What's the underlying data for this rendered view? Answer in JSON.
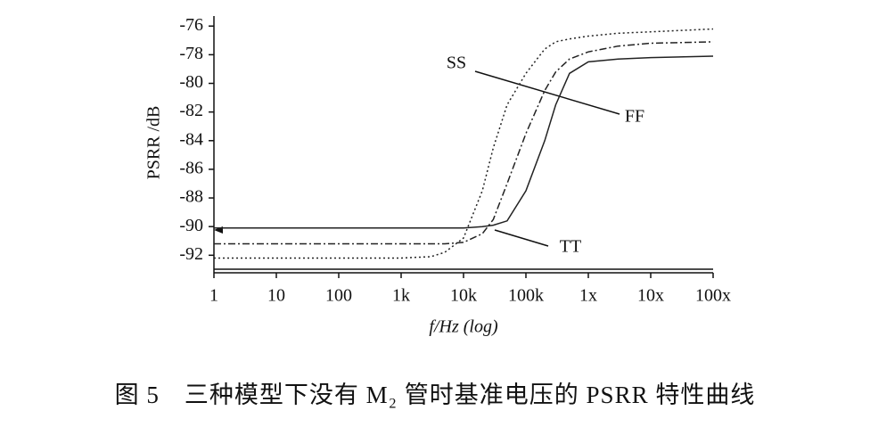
{
  "chart_data": {
    "type": "line",
    "ylabel": "PSRR /dB",
    "xlabel": "f/Hz (log)",
    "caption": "图 5　三种模型下没有 M₂ 管时基准电压的 PSRR 特性曲线",
    "xscale": "log",
    "xlim": [
      1,
      100000000
    ],
    "xticks": [
      1,
      10,
      100,
      {
        "value": 1000,
        "label": "1k"
      },
      {
        "value": 10000,
        "label": "10k"
      },
      {
        "value": 100000,
        "label": "100k"
      },
      {
        "value": 1000000,
        "label": "1x"
      },
      {
        "value": 10000000,
        "label": "10x"
      },
      {
        "value": 100000000,
        "label": "100x"
      }
    ],
    "ylim": [
      -93.1,
      -75.3
    ],
    "yticks": [
      -76,
      -78,
      -80,
      -82,
      -84,
      -86,
      -88,
      -90,
      -92
    ],
    "x": [
      1,
      10,
      100,
      1000,
      3000,
      5000,
      10000,
      20000,
      30000,
      50000,
      100000,
      200000,
      300000,
      500000,
      1000000,
      3000000,
      10000000,
      100000000
    ],
    "series": [
      {
        "name": "SS",
        "color": "#222222",
        "dash": "dotted",
        "values": [
          -92.2,
          -92.2,
          -92.2,
          -92.2,
          -92.1,
          -91.8,
          -90.8,
          -87.5,
          -84.5,
          -81.5,
          -79.3,
          -77.6,
          -77.1,
          -76.9,
          -76.7,
          -76.5,
          -76.4,
          -76.2
        ]
      },
      {
        "name": "FF",
        "color": "#222222",
        "dash": "dashdot",
        "values": [
          -91.2,
          -91.2,
          -91.2,
          -91.2,
          -91.2,
          -91.2,
          -91.1,
          -90.5,
          -89.5,
          -87,
          -83.5,
          -80.5,
          -79.2,
          -78.3,
          -77.8,
          -77.4,
          -77.2,
          -77.1
        ]
      },
      {
        "name": "TT",
        "color": "#222222",
        "dash": "solid",
        "values": [
          -90.1,
          -90.1,
          -90.1,
          -90.1,
          -90.1,
          -90.1,
          -90.1,
          -90.0,
          -89.9,
          -89.6,
          -87.5,
          -84,
          -81.5,
          -79.3,
          -78.5,
          -78.3,
          -78.2,
          -78.1
        ]
      }
    ]
  }
}
